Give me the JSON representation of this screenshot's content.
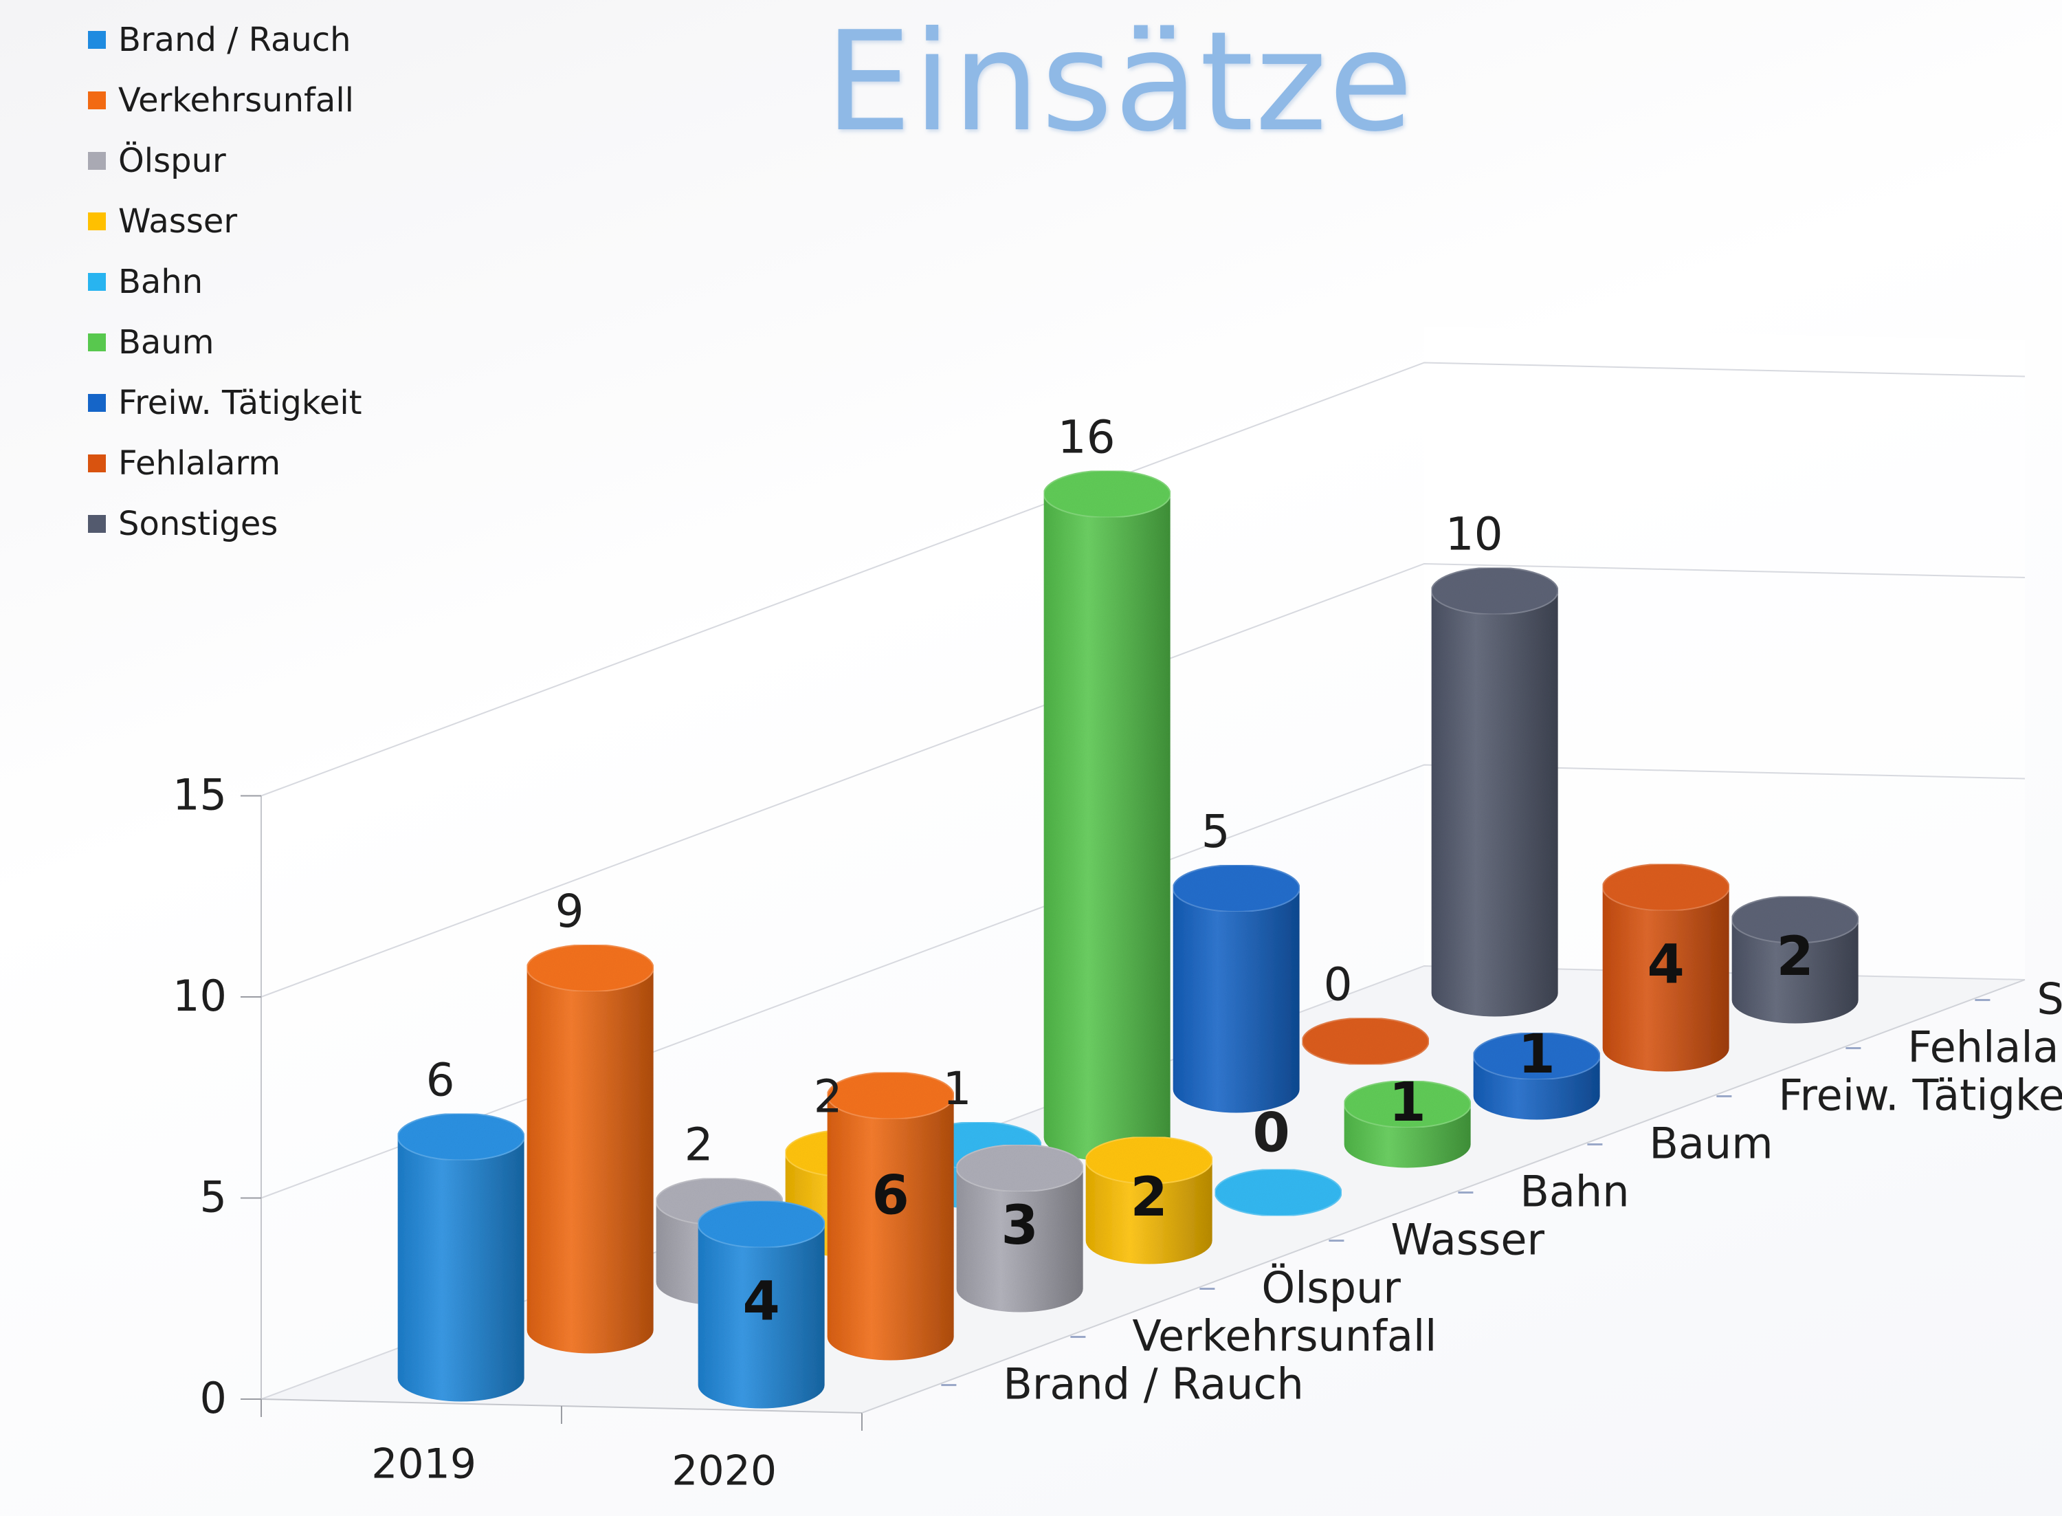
{
  "title": "Einsätze",
  "legend": [
    {
      "label": "Brand / Rauch",
      "color": "#1f8be0"
    },
    {
      "label": "Verkehrsunfall",
      "color": "#f26a12"
    },
    {
      "label": "Ölspur",
      "color": "#a9a9b3"
    },
    {
      "label": "Wasser",
      "color": "#ffc000"
    },
    {
      "label": "Bahn",
      "color": "#28b4f0"
    },
    {
      "label": "Baum",
      "color": "#58c84e"
    },
    {
      "label": "Freiw. Tätigkeit",
      "color": "#1565c8"
    },
    {
      "label": "Fehlalarm",
      "color": "#d9530f"
    },
    {
      "label": "Sonstiges",
      "color": "#535a6e"
    }
  ],
  "chart_data": {
    "type": "bar",
    "subtype": "3d-cylinder",
    "title": "Einsätze",
    "categories": [
      "2019",
      "2020"
    ],
    "depth_categories": [
      "Brand / Rauch",
      "Verkehrsunfall",
      "Ölspur",
      "Wasser",
      "Bahn",
      "Baum",
      "Freiw. Tätigkeit",
      "Fehlalarm",
      "Sonstiges"
    ],
    "series": [
      {
        "name": "Brand / Rauch",
        "values": [
          6,
          4
        ],
        "color": "#1f8be0"
      },
      {
        "name": "Verkehrsunfall",
        "values": [
          9,
          6
        ],
        "color": "#f26a12"
      },
      {
        "name": "Ölspur",
        "values": [
          2,
          3
        ],
        "color": "#a9a9b3"
      },
      {
        "name": "Wasser",
        "values": [
          2,
          2
        ],
        "color": "#ffc000"
      },
      {
        "name": "Bahn",
        "values": [
          1,
          0
        ],
        "color": "#28b4f0"
      },
      {
        "name": "Baum",
        "values": [
          16,
          1
        ],
        "color": "#58c84e"
      },
      {
        "name": "Freiw. Tätigkeit",
        "values": [
          5,
          1
        ],
        "color": "#1565c8"
      },
      {
        "name": "Fehlalarm",
        "values": [
          0,
          4
        ],
        "color": "#d9530f"
      },
      {
        "name": "Sonstiges",
        "values": [
          10,
          2
        ],
        "color": "#535a6e"
      }
    ],
    "yticks": [
      "0",
      "5",
      "10",
      "15"
    ],
    "ylim": [
      0,
      15
    ],
    "legend_position": "top-left"
  }
}
